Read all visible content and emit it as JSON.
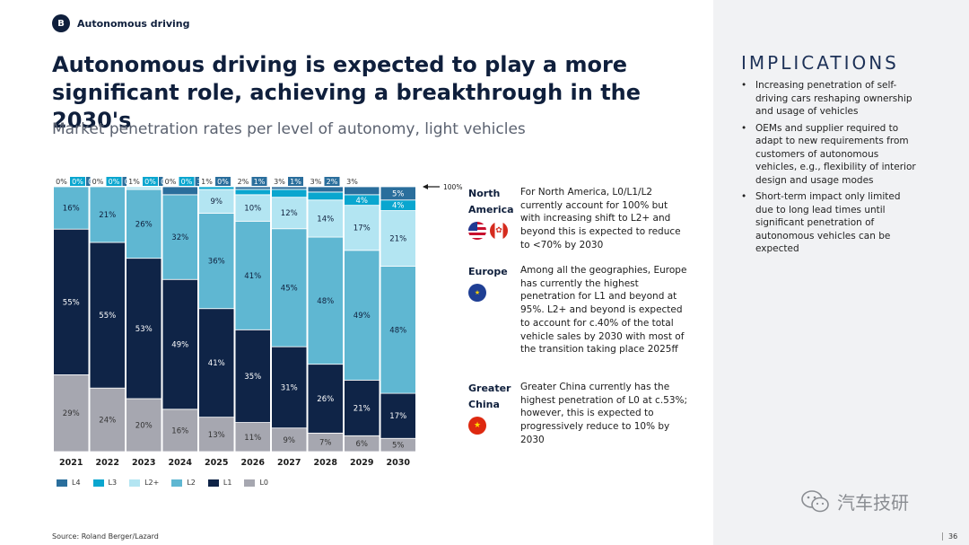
{
  "section": {
    "badge": "B",
    "label": "Autonomous driving"
  },
  "title": "Autonomous driving is expected to play a more significant role, achieving a breakthrough in the 2030's",
  "subtitle": "Market penetration rates per level of autonomy, light vehicles",
  "colors": {
    "L4": "#2a6e9c",
    "L3": "#0aa6cf",
    "L2+": "#b3e5f2",
    "L2": "#5fb7d2",
    "L1": "#0f2447",
    "L0": "#a6a7b0"
  },
  "chart_data": {
    "type": "bar",
    "stacked": true,
    "categories": [
      "2021",
      "2022",
      "2023",
      "2024",
      "2025",
      "2026",
      "2027",
      "2028",
      "2029",
      "2030"
    ],
    "series": [
      {
        "name": "L0",
        "values": [
          29,
          24,
          20,
          16,
          13,
          11,
          9,
          7,
          6,
          5
        ]
      },
      {
        "name": "L1",
        "values": [
          55,
          55,
          53,
          49,
          41,
          35,
          31,
          26,
          21,
          17
        ]
      },
      {
        "name": "L2",
        "values": [
          16,
          21,
          26,
          32,
          36,
          41,
          45,
          48,
          49,
          48
        ]
      },
      {
        "name": "L2+",
        "values": [
          0,
          0,
          1,
          0,
          9,
          10,
          12,
          14,
          17,
          21
        ]
      },
      {
        "name": "L3",
        "values": [
          0,
          0,
          0,
          0,
          1,
          2,
          3,
          3,
          4,
          4
        ]
      },
      {
        "name": "L4",
        "values": [
          0,
          0,
          0,
          3,
          0,
          1,
          1,
          2,
          3,
          5
        ]
      }
    ],
    "ylim": [
      0,
      100
    ],
    "annotation": "100%",
    "legend": [
      "L4",
      "L3",
      "L2+",
      "L2",
      "L1",
      "L0"
    ]
  },
  "regions": [
    {
      "name": "North America",
      "text": "For North America, L0/L1/L2 currently account for 100% but with increasing shift to L2+ and beyond this is expected to reduce to <70% by 2030",
      "flags": [
        "us-flag",
        "canada-flag"
      ]
    },
    {
      "name": "Europe",
      "text": "Among all the geographies, Europe has currently the highest penetration for L1 and beyond at 95%. L2+ and beyond is expected to account for c.40% of the total vehicle sales by 2030 with most of the transition taking place 2025ff",
      "flags": [
        "eu-flag"
      ]
    },
    {
      "name": "Greater China",
      "text": "Greater China currently has the highest penetration of L0 at c.53%; however, this is expected to progressively reduce to 10% by 2030",
      "flags": [
        "china-flag"
      ]
    }
  ],
  "implications": {
    "title": "IMPLICATIONS",
    "items": [
      "Increasing penetration of self-driving cars reshaping ownership and usage of vehicles",
      "OEMs and supplier required to adapt to new requirements from customers of autonomous vehicles, e.g., flexibility of interior design and usage modes",
      "Short-term impact only limited due to long lead times until significant penetration of autonomous vehicles can be expected"
    ]
  },
  "source": "Source: Roland Berger/Lazard",
  "page_number": "36",
  "watermark": "汽车技研"
}
